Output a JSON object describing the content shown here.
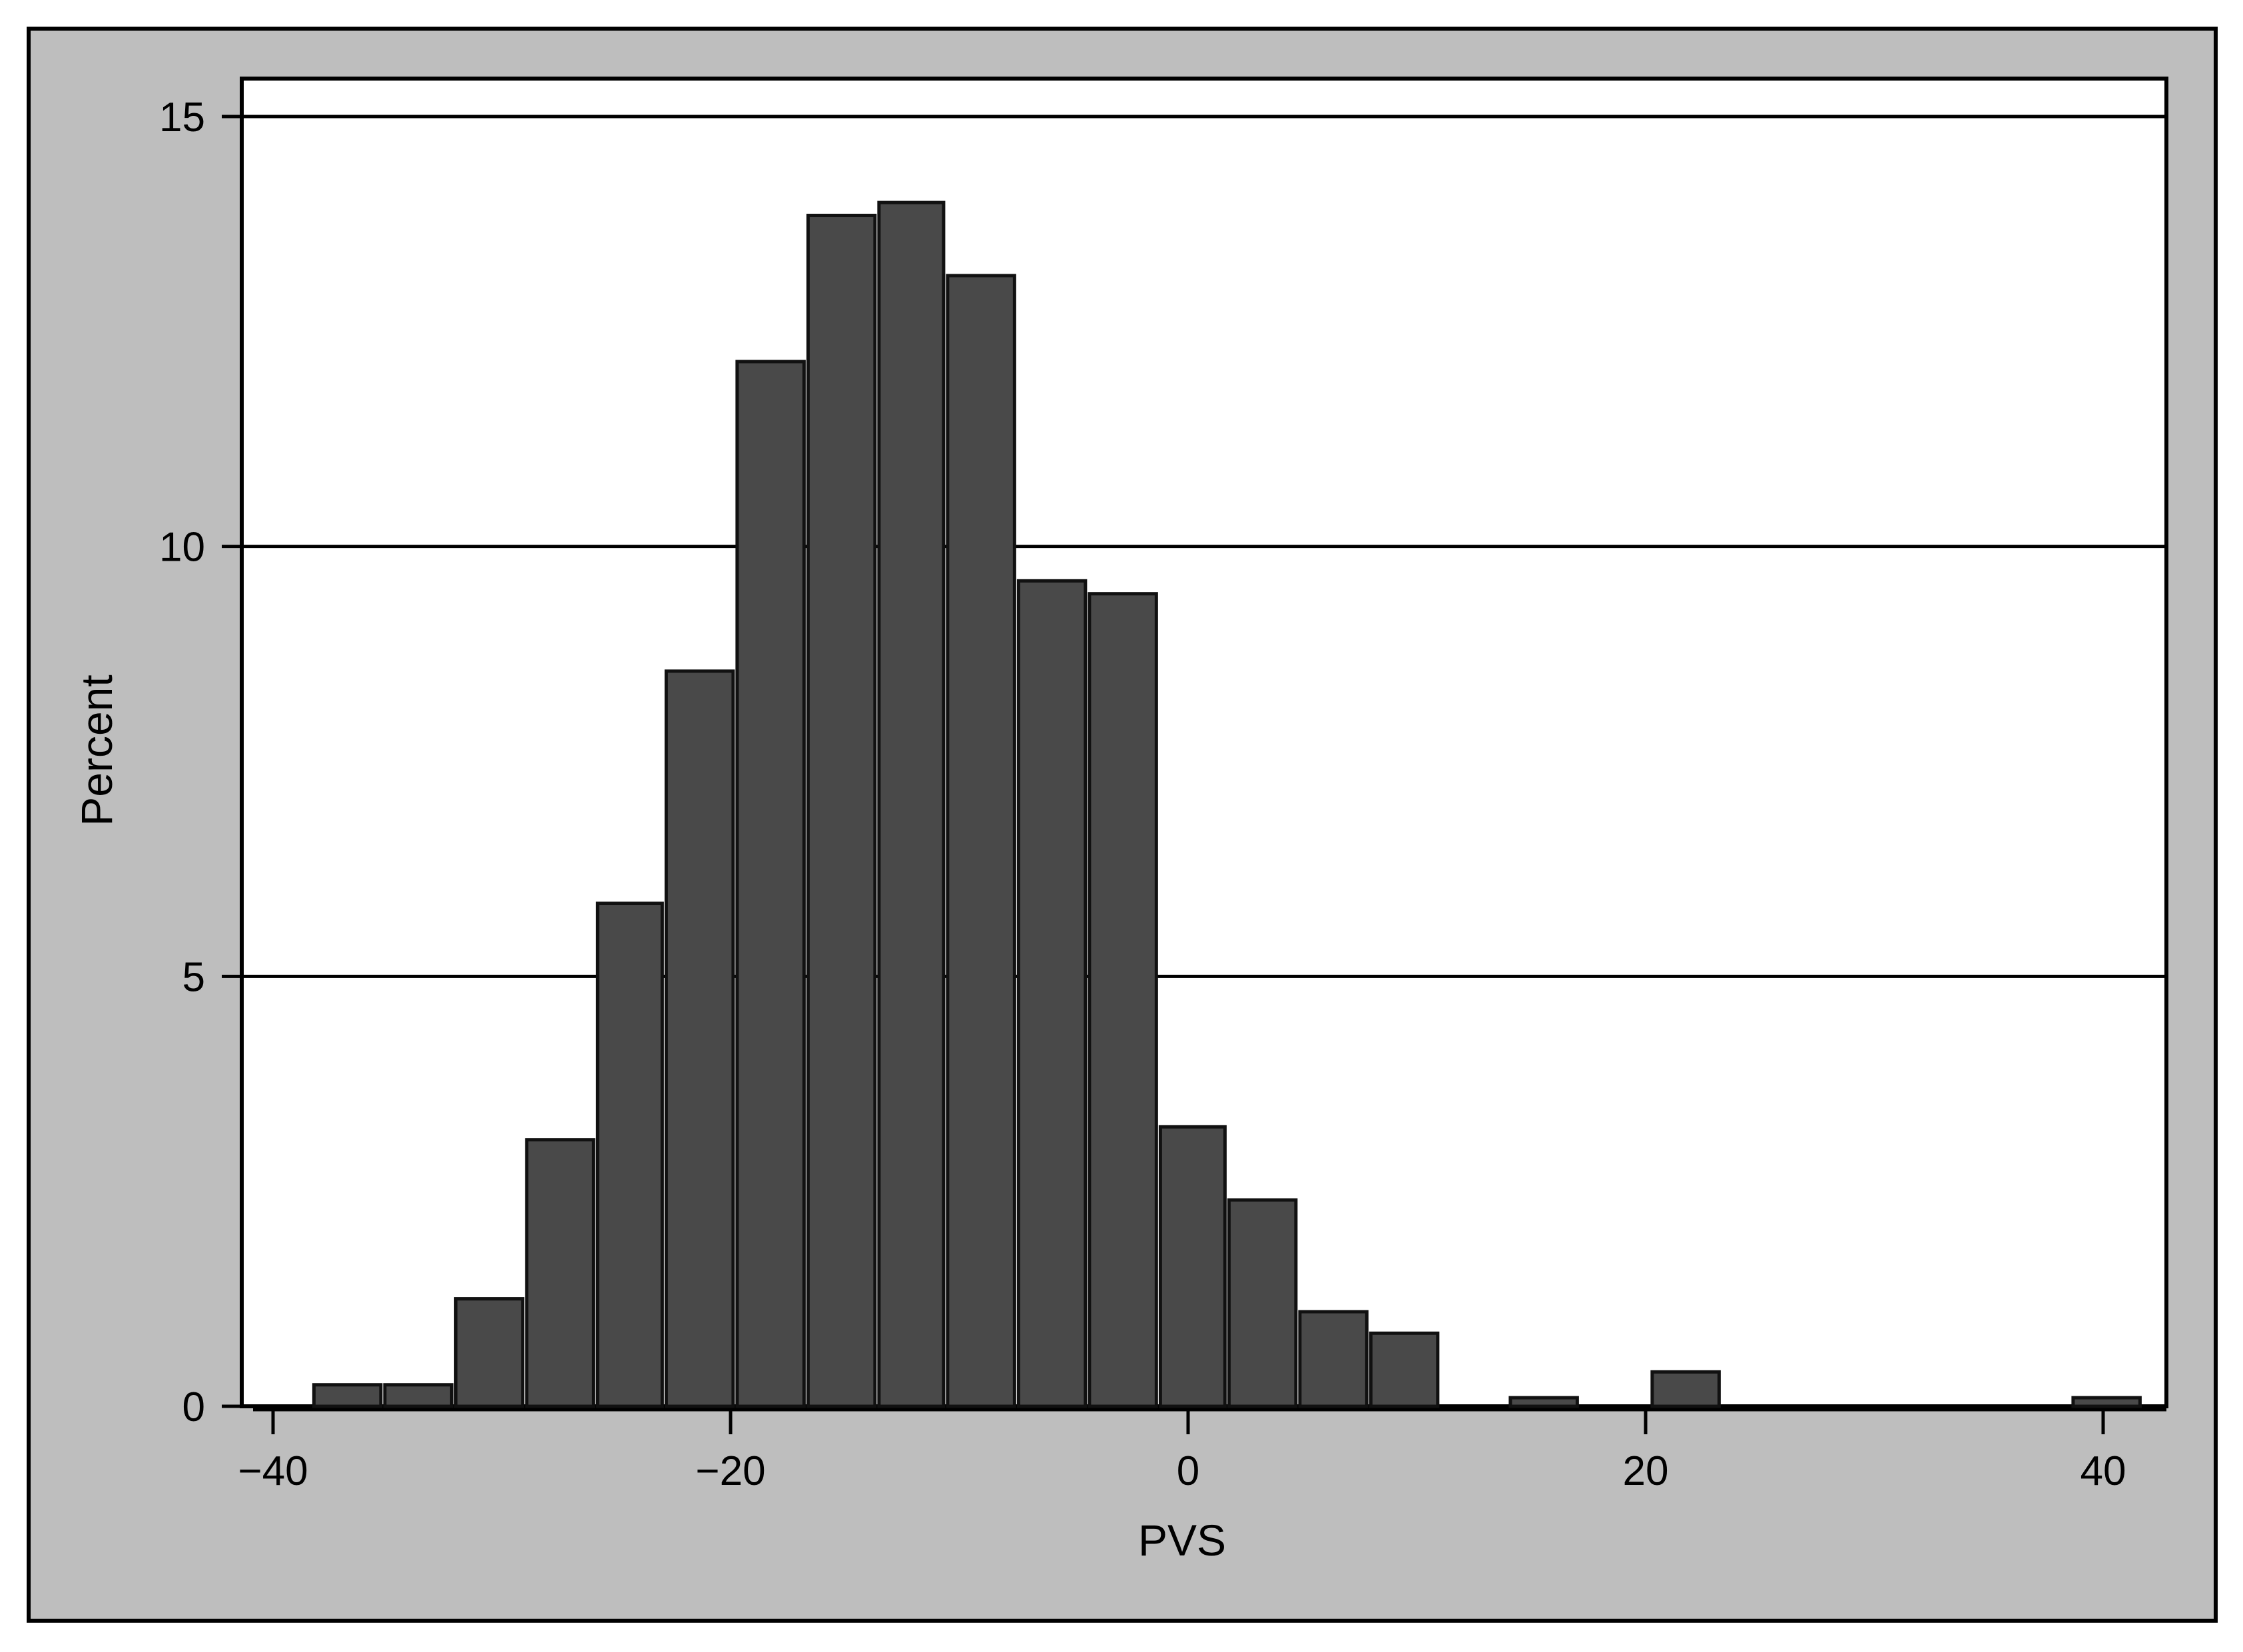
{
  "chart_data": {
    "type": "bar",
    "xlabel": "PVS",
    "ylabel": "Percent",
    "xlim": [
      -42.5,
      43
    ],
    "ylim": [
      0,
      15
    ],
    "x_ticks": [
      {
        "value": -40,
        "label": "−40"
      },
      {
        "value": -20,
        "label": "−20"
      },
      {
        "value": 0,
        "label": "0"
      },
      {
        "value": 20,
        "label": "20"
      },
      {
        "value": 40,
        "label": "40"
      }
    ],
    "y_ticks": [
      {
        "value": 0,
        "label": "0"
      },
      {
        "value": 5,
        "label": "5"
      },
      {
        "value": 10,
        "label": "10"
      },
      {
        "value": 15,
        "label": "15"
      }
    ],
    "grid": "horizontal",
    "bin_width": 3.08,
    "bins": [
      {
        "start": -38.3,
        "end": -35.2,
        "value": 0.25
      },
      {
        "start": -35.2,
        "end": -32.1,
        "value": 0.25
      },
      {
        "start": -32.1,
        "end": -29.0,
        "value": 1.25
      },
      {
        "start": -29.0,
        "end": -25.9,
        "value": 3.1
      },
      {
        "start": -25.9,
        "end": -22.9,
        "value": 5.85
      },
      {
        "start": -22.9,
        "end": -19.8,
        "value": 8.55
      },
      {
        "start": -19.8,
        "end": -16.7,
        "value": 12.15
      },
      {
        "start": -16.7,
        "end": -13.6,
        "value": 13.85
      },
      {
        "start": -13.6,
        "end": -10.6,
        "value": 14.0
      },
      {
        "start": -10.6,
        "end": -7.5,
        "value": 13.15
      },
      {
        "start": -7.5,
        "end": -4.4,
        "value": 9.6
      },
      {
        "start": -4.4,
        "end": -1.3,
        "value": 9.45
      },
      {
        "start": -1.3,
        "end": 1.7,
        "value": 3.25
      },
      {
        "start": 1.7,
        "end": 4.8,
        "value": 2.4
      },
      {
        "start": 4.8,
        "end": 7.9,
        "value": 1.1
      },
      {
        "start": 7.9,
        "end": 11.0,
        "value": 0.85
      },
      {
        "start": 14.0,
        "end": 17.1,
        "value": 0.1
      },
      {
        "start": 20.2,
        "end": 23.3,
        "value": 0.4
      },
      {
        "start": 38.6,
        "end": 41.7,
        "value": 0.1
      }
    ]
  },
  "colors": {
    "outer_background": "#bebebe",
    "plot_background": "#ffffff",
    "bar_fill": "#494949",
    "bar_stroke": "#111111",
    "grid_line": "#000000"
  }
}
